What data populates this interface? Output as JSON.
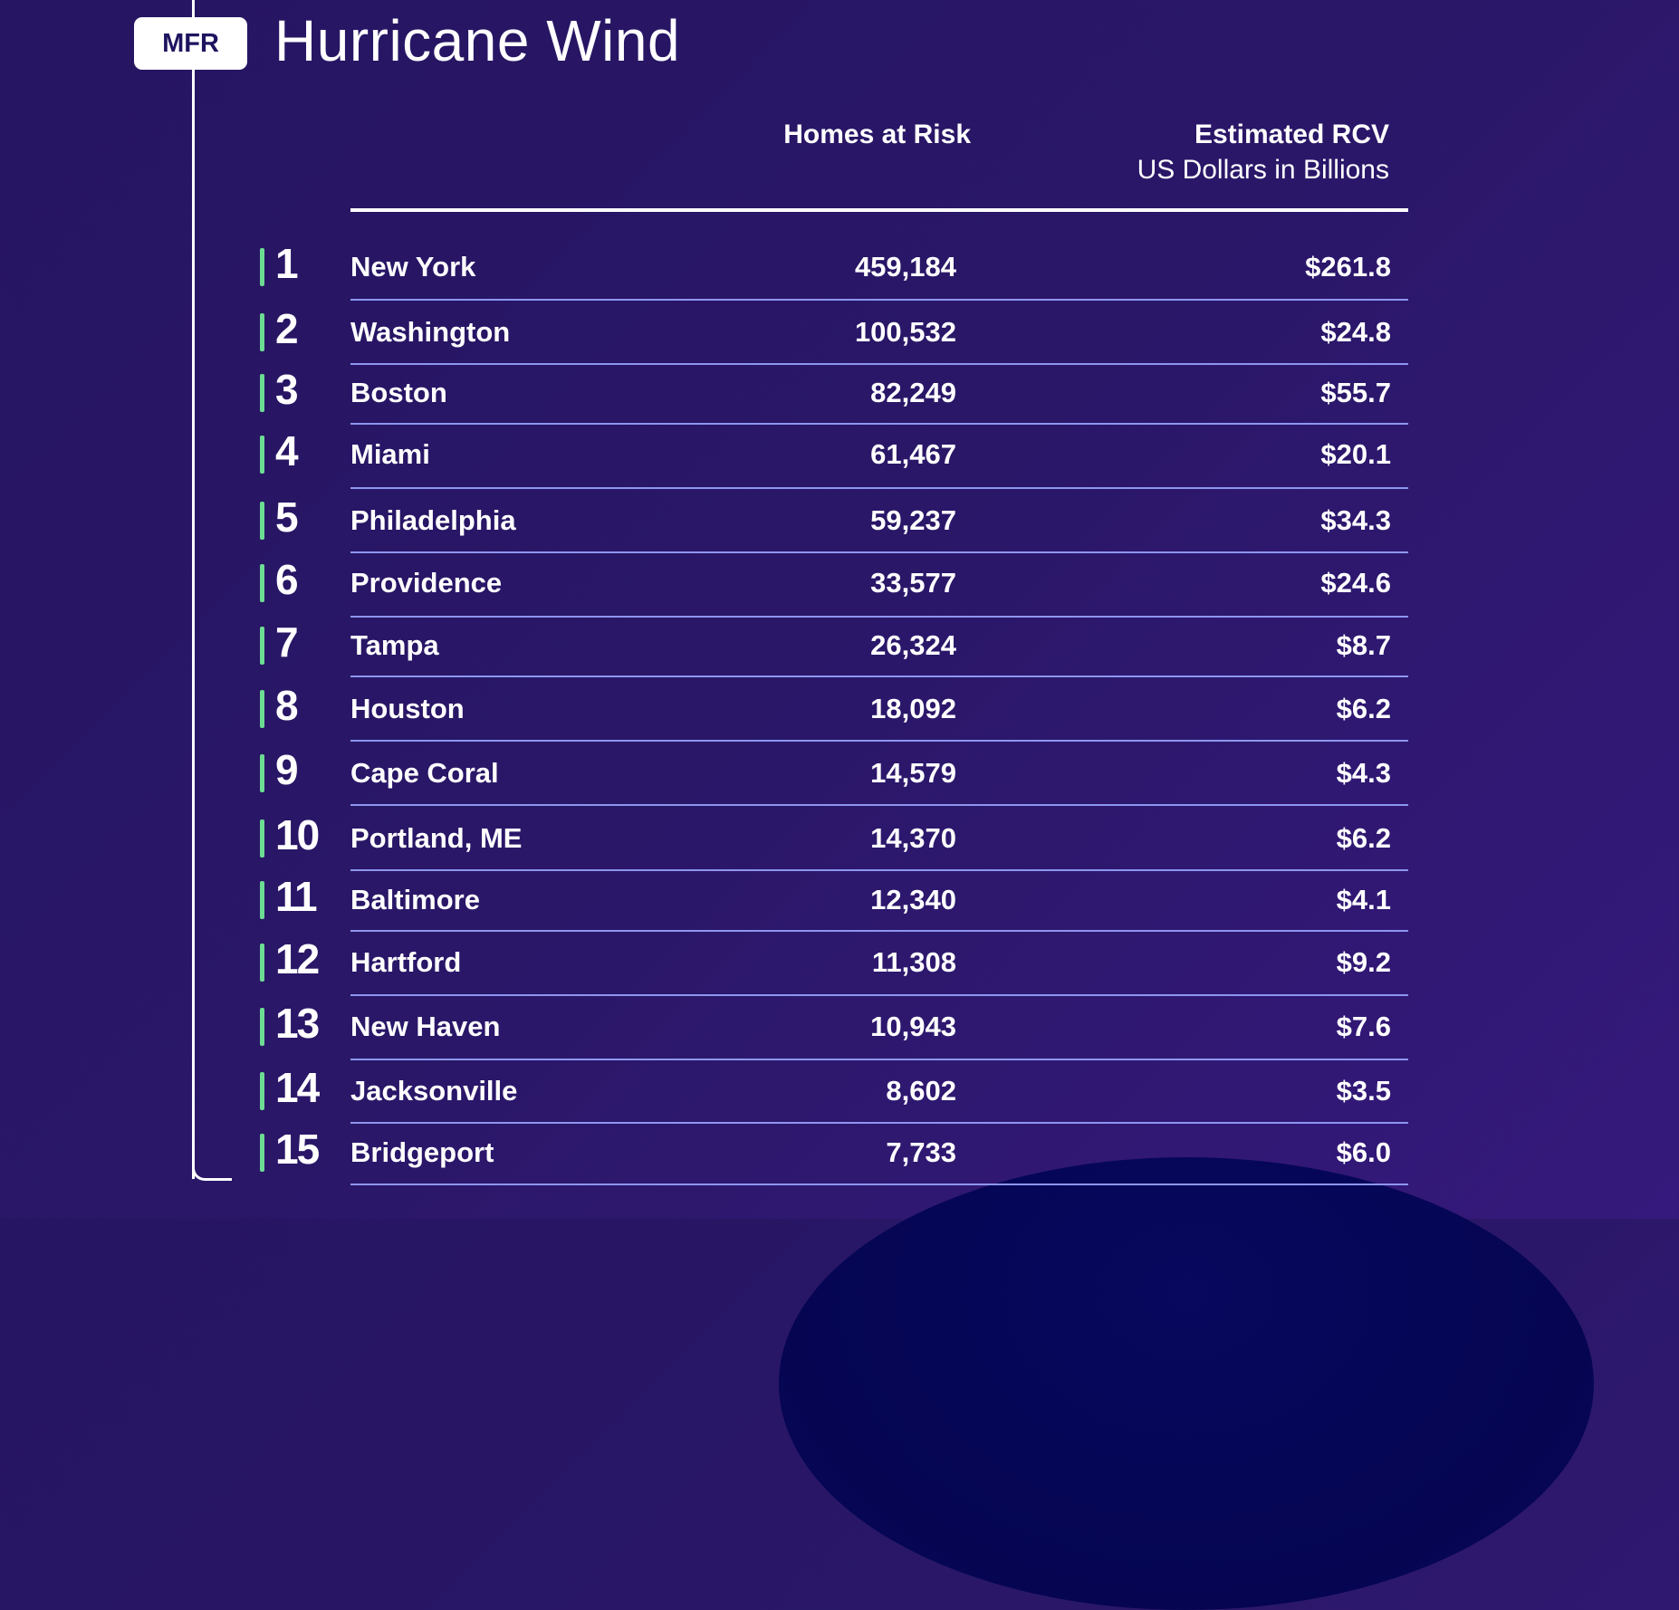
{
  "header": {
    "logo": "MFR",
    "title": "Hurricane Wind"
  },
  "columns": {
    "homes": "Homes at Risk",
    "rcv": "Estimated RCV",
    "rcv_sub": "US Dollars in Billions"
  },
  "accent_color": "#6ddc93",
  "rows": [
    {
      "rank": "1",
      "name": "New York",
      "homes": "459,184",
      "rcv": "$261.8"
    },
    {
      "rank": "2",
      "name": "Washington",
      "homes": "100,532",
      "rcv": "$24.8"
    },
    {
      "rank": "3",
      "name": "Boston",
      "homes": "82,249",
      "rcv": "$55.7"
    },
    {
      "rank": "4",
      "name": "Miami",
      "homes": "61,467",
      "rcv": "$20.1"
    },
    {
      "rank": "5",
      "name": "Philadelphia",
      "homes": "59,237",
      "rcv": "$34.3"
    },
    {
      "rank": "6",
      "name": "Providence",
      "homes": "33,577",
      "rcv": "$24.6"
    },
    {
      "rank": "7",
      "name": "Tampa",
      "homes": "26,324",
      "rcv": "$8.7"
    },
    {
      "rank": "8",
      "name": "Houston",
      "homes": "18,092",
      "rcv": "$6.2"
    },
    {
      "rank": "9",
      "name": "Cape Coral",
      "homes": "14,579",
      "rcv": "$4.3"
    },
    {
      "rank": "10",
      "name": "Portland, ME",
      "homes": "14,370",
      "rcv": "$6.2"
    },
    {
      "rank": "11",
      "name": "Baltimore",
      "homes": "12,340",
      "rcv": "$4.1"
    },
    {
      "rank": "12",
      "name": "Hartford",
      "homes": "11,308",
      "rcv": "$9.2"
    },
    {
      "rank": "13",
      "name": "New Haven",
      "homes": "10,943",
      "rcv": "$7.6"
    },
    {
      "rank": "14",
      "name": "Jacksonville",
      "homes": "8,602",
      "rcv": "$3.5"
    },
    {
      "rank": "15",
      "name": "Bridgeport",
      "homes": "7,733",
      "rcv": "$6.0"
    }
  ]
}
